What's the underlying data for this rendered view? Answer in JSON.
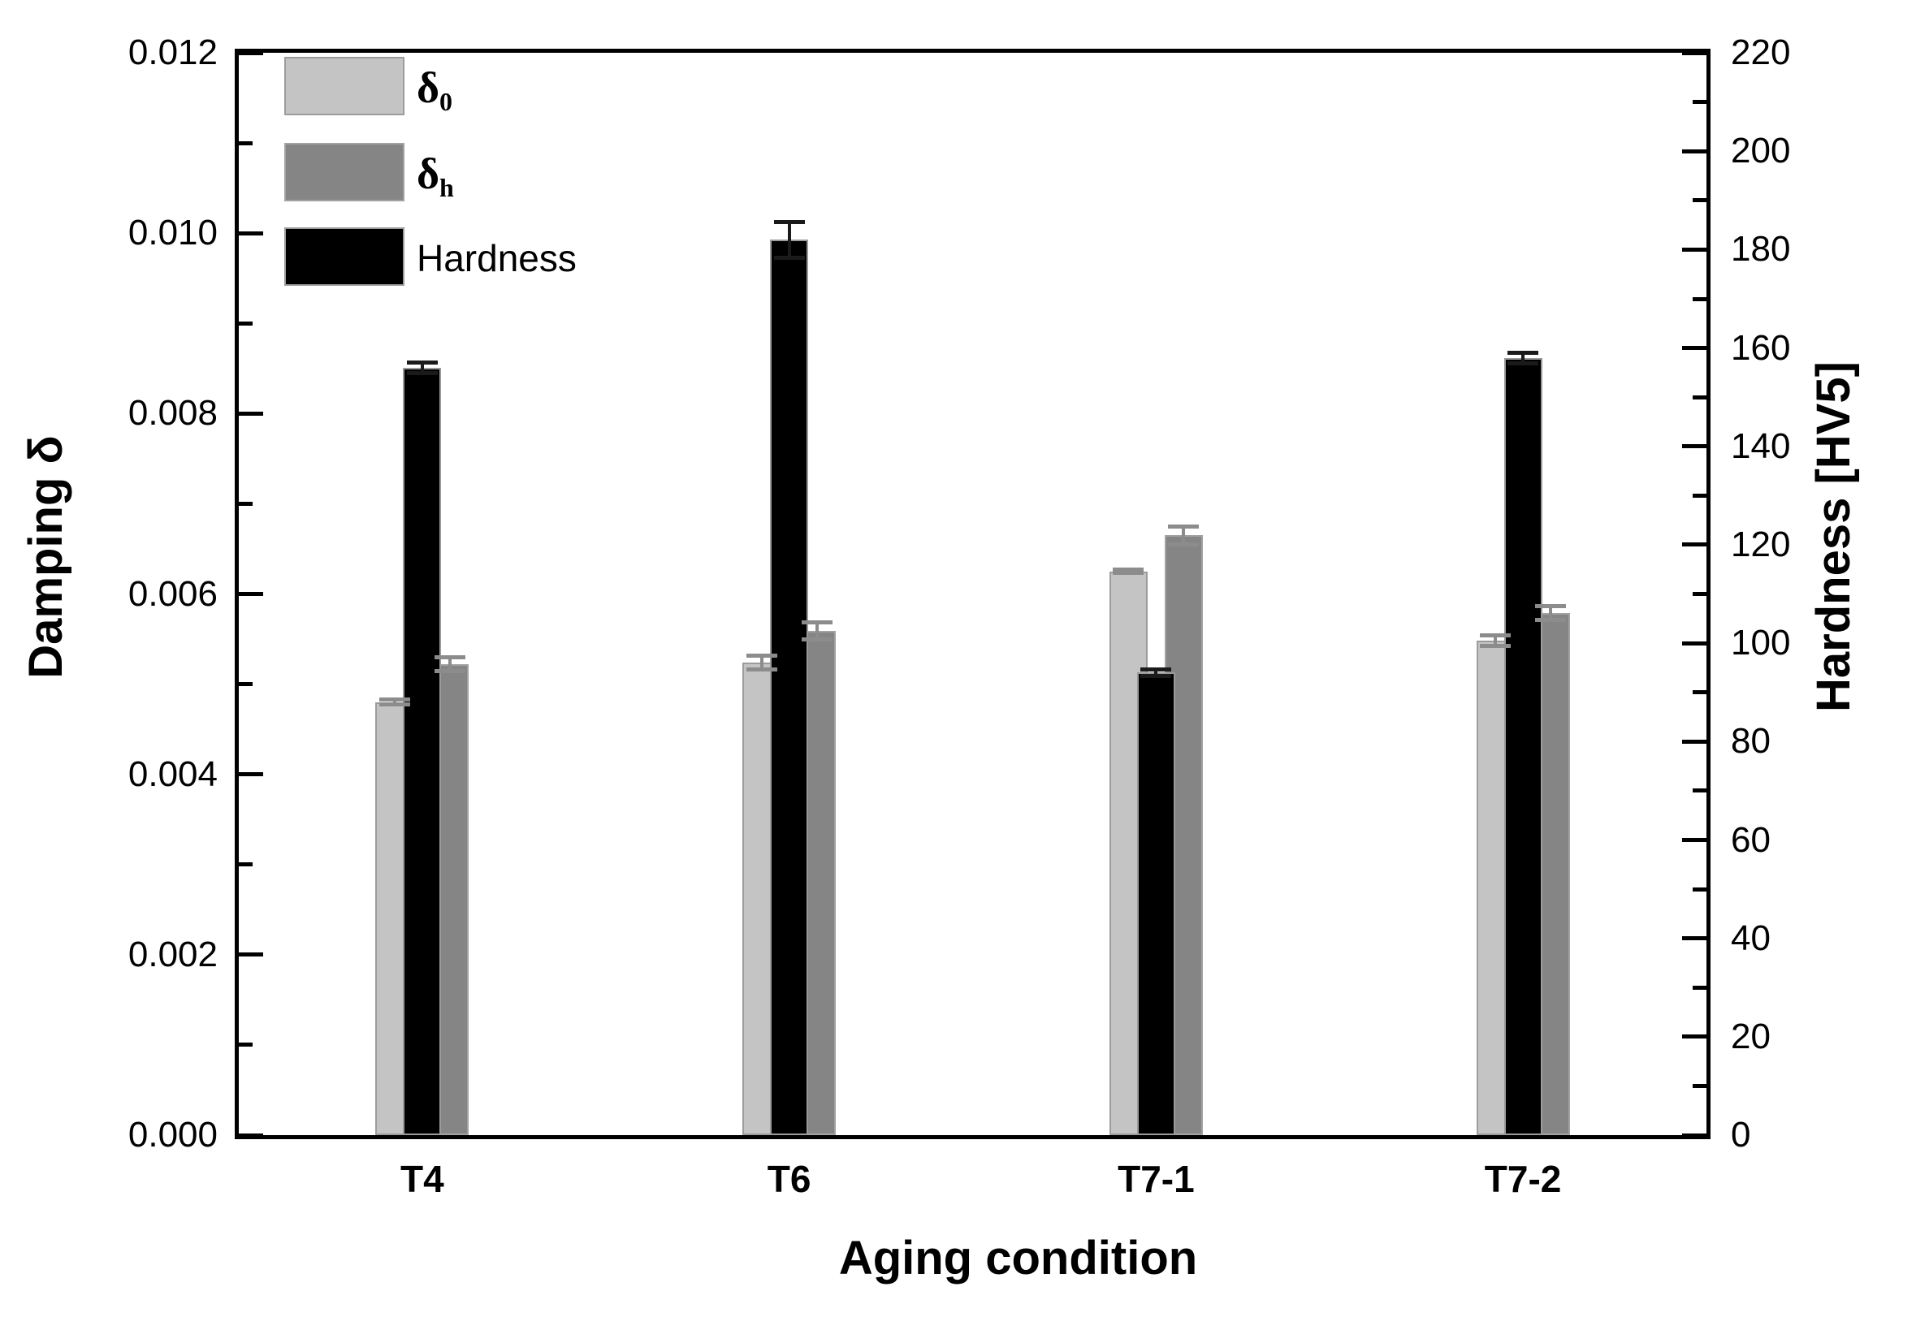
{
  "chart_data": {
    "type": "bar",
    "categories": [
      "T4",
      "T6",
      "T7-1",
      "T7-2"
    ],
    "series": [
      {
        "name": "delta_0",
        "legend_base": "δ",
        "legend_sub": "0",
        "axis": "left",
        "color": "#c4c4c4",
        "border_color": "#9c9c9c",
        "error_color": "#8c8c8c",
        "values": [
          0.0048,
          0.00524,
          0.00625,
          0.00548
        ],
        "errors": [
          5e-05,
          0.0001,
          4e-05,
          8e-05
        ]
      },
      {
        "name": "delta_h",
        "legend_base": "δ",
        "legend_sub": "h",
        "axis": "left",
        "color": "#858585",
        "border_color": "#a2a2a2",
        "error_color": "#8c8c8c",
        "values": [
          0.00522,
          0.00559,
          0.00665,
          0.00579
        ],
        "errors": [
          0.0001,
          0.00012,
          0.00012,
          0.0001
        ]
      },
      {
        "name": "hardness",
        "legend_base": "Hardness",
        "legend_sub": "",
        "axis": "right",
        "color": "#000000",
        "border_color": "#9a9a9a",
        "error_color": "#1a1a1a",
        "values": [
          156,
          182,
          94,
          158
        ],
        "errors": [
          1.5,
          4,
          1,
          1.5
        ]
      }
    ],
    "left_axis": {
      "title": "Damping δ",
      "min": 0,
      "max": 0.012,
      "major_ticks": [
        0,
        0.002,
        0.004,
        0.006,
        0.008,
        0.01,
        0.012
      ],
      "major_labels": [
        "0.000",
        "0.002",
        "0.004",
        "0.006",
        "0.008",
        "0.010",
        "0.012"
      ],
      "minor_ticks": [
        0.001,
        0.003,
        0.005,
        0.007,
        0.009,
        0.011
      ]
    },
    "right_axis": {
      "title": "Hardness [HV5]",
      "min": 0,
      "max": 220,
      "major_ticks": [
        0,
        20,
        40,
        60,
        80,
        100,
        120,
        140,
        160,
        180,
        200,
        220
      ],
      "major_labels": [
        "0",
        "20",
        "40",
        "60",
        "80",
        "100",
        "120",
        "140",
        "160",
        "180",
        "200",
        "220"
      ],
      "minor_ticks": [
        10,
        30,
        50,
        70,
        90,
        110,
        130,
        150,
        170,
        190,
        210
      ]
    },
    "x_axis": {
      "title": "Aging condition"
    },
    "legend": {
      "items": [
        {
          "series": "delta_0"
        },
        {
          "series": "delta_h"
        },
        {
          "series": "hardness"
        }
      ]
    },
    "layout_hints": {
      "grid": "off",
      "legend_position": "top-left-inside",
      "bar_style": "grouped-overlapping",
      "error_bars": "on"
    }
  }
}
